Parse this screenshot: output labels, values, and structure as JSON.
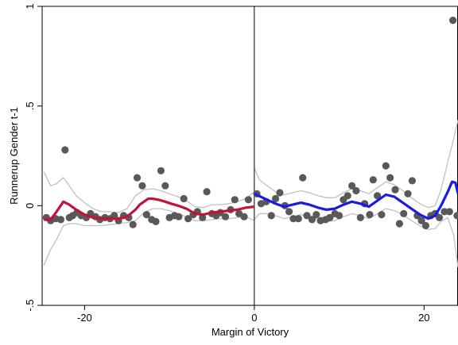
{
  "chart_data": {
    "type": "scatter",
    "xlabel": "Margin of Victory",
    "ylabel": "Runnerup Gender t-1",
    "xlim": [
      -25,
      24
    ],
    "ylim": [
      -0.5,
      1
    ],
    "xticks": [
      {
        "value": -20,
        "label": "-20"
      },
      {
        "value": 0,
        "label": "0"
      },
      {
        "value": 20,
        "label": "20"
      }
    ],
    "yticks": [
      {
        "value": -0.5,
        "label": "-.5"
      },
      {
        "value": 0,
        "label": "0"
      },
      {
        "value": 0.5,
        "label": ".5"
      },
      {
        "value": 1,
        "label": "1"
      }
    ],
    "cutoff": 0,
    "grid": false,
    "colors": {
      "points": "#595959",
      "left_fit": "#c0143c",
      "right_fit": "#1a1ae6",
      "ci": "#c0c0c0",
      "cutoff": "#000000"
    },
    "points": [
      [
        -24.5,
        -0.06
      ],
      [
        -24.0,
        -0.075
      ],
      [
        -23.4,
        -0.065
      ],
      [
        -22.8,
        -0.07
      ],
      [
        -22.3,
        0.28
      ],
      [
        -21.8,
        -0.06
      ],
      [
        -21.4,
        -0.05
      ],
      [
        -20.9,
        -0.035
      ],
      [
        -20.4,
        -0.05
      ],
      [
        -19.8,
        -0.06
      ],
      [
        -19.3,
        -0.04
      ],
      [
        -18.7,
        -0.055
      ],
      [
        -18.2,
        -0.07
      ],
      [
        -17.6,
        -0.06
      ],
      [
        -17.0,
        -0.065
      ],
      [
        -16.5,
        -0.05
      ],
      [
        -16.0,
        -0.075
      ],
      [
        -15.4,
        -0.05
      ],
      [
        -14.8,
        -0.06
      ],
      [
        -14.3,
        -0.095
      ],
      [
        -13.8,
        0.14
      ],
      [
        -13.2,
        0.1
      ],
      [
        -12.7,
        -0.045
      ],
      [
        -12.1,
        -0.07
      ],
      [
        -11.6,
        -0.08
      ],
      [
        -11.0,
        0.175
      ],
      [
        -10.5,
        0.1
      ],
      [
        -10.0,
        -0.06
      ],
      [
        -9.4,
        -0.05
      ],
      [
        -8.9,
        -0.055
      ],
      [
        -8.3,
        0.035
      ],
      [
        -7.8,
        -0.065
      ],
      [
        -7.2,
        -0.045
      ],
      [
        -6.7,
        -0.03
      ],
      [
        -6.1,
        -0.06
      ],
      [
        -5.6,
        0.07
      ],
      [
        -5.0,
        -0.04
      ],
      [
        -4.5,
        -0.05
      ],
      [
        -4.0,
        -0.035
      ],
      [
        -3.4,
        -0.055
      ],
      [
        -2.8,
        -0.02
      ],
      [
        -2.3,
        0.03
      ],
      [
        -1.8,
        -0.04
      ],
      [
        -1.2,
        -0.055
      ],
      [
        -0.7,
        0.03
      ],
      [
        0.3,
        0.06
      ],
      [
        0.8,
        0.01
      ],
      [
        1.4,
        0.02
      ],
      [
        2.0,
        -0.05
      ],
      [
        2.5,
        0.035
      ],
      [
        3.0,
        0.065
      ],
      [
        3.6,
        0.0
      ],
      [
        4.1,
        -0.03
      ],
      [
        4.6,
        -0.065
      ],
      [
        5.2,
        -0.065
      ],
      [
        5.7,
        0.14
      ],
      [
        6.2,
        -0.05
      ],
      [
        6.8,
        -0.07
      ],
      [
        7.3,
        -0.045
      ],
      [
        7.8,
        -0.075
      ],
      [
        8.4,
        -0.07
      ],
      [
        8.9,
        -0.06
      ],
      [
        9.5,
        -0.04
      ],
      [
        10.0,
        -0.05
      ],
      [
        10.5,
        0.03
      ],
      [
        11.0,
        0.05
      ],
      [
        11.5,
        0.1
      ],
      [
        12.0,
        0.075
      ],
      [
        12.5,
        -0.06
      ],
      [
        13.0,
        0.01
      ],
      [
        13.6,
        -0.045
      ],
      [
        14.0,
        0.13
      ],
      [
        14.5,
        0.05
      ],
      [
        15.0,
        -0.045
      ],
      [
        15.5,
        0.2
      ],
      [
        16.0,
        0.14
      ],
      [
        16.6,
        0.08
      ],
      [
        17.1,
        -0.09
      ],
      [
        17.6,
        -0.04
      ],
      [
        18.1,
        0.06
      ],
      [
        18.6,
        0.125
      ],
      [
        19.2,
        -0.05
      ],
      [
        19.7,
        -0.075
      ],
      [
        20.2,
        -0.1
      ],
      [
        20.8,
        -0.05
      ],
      [
        21.3,
        -0.04
      ],
      [
        21.8,
        -0.06
      ],
      [
        22.4,
        -0.03
      ],
      [
        23.0,
        -0.03
      ],
      [
        23.4,
        0.93
      ],
      [
        23.9,
        -0.05
      ]
    ],
    "left_fit": [
      [
        -24.8,
        -0.07
      ],
      [
        -24.0,
        -0.07
      ],
      [
        -23.3,
        -0.03
      ],
      [
        -22.5,
        0.02
      ],
      [
        -21.8,
        0.005
      ],
      [
        -21.0,
        -0.02
      ],
      [
        -20.0,
        -0.045
      ],
      [
        -19.0,
        -0.06
      ],
      [
        -18.0,
        -0.065
      ],
      [
        -17.0,
        -0.065
      ],
      [
        -16.0,
        -0.065
      ],
      [
        -15.0,
        -0.055
      ],
      [
        -14.0,
        -0.02
      ],
      [
        -13.5,
        0.005
      ],
      [
        -13.0,
        0.02
      ],
      [
        -12.5,
        0.035
      ],
      [
        -12.0,
        0.035
      ],
      [
        -11.3,
        0.03
      ],
      [
        -10.5,
        0.02
      ],
      [
        -9.8,
        0.01
      ],
      [
        -9.0,
        0.0
      ],
      [
        -8.0,
        -0.015
      ],
      [
        -7.0,
        -0.04
      ],
      [
        -6.0,
        -0.045
      ],
      [
        -5.0,
        -0.035
      ],
      [
        -4.0,
        -0.03
      ],
      [
        -3.0,
        -0.025
      ],
      [
        -2.0,
        -0.02
      ],
      [
        -1.0,
        -0.01
      ],
      [
        0.0,
        -0.005
      ]
    ],
    "left_ci_upper": [
      [
        -24.8,
        0.17
      ],
      [
        -24.0,
        0.1
      ],
      [
        -23.3,
        0.11
      ],
      [
        -22.5,
        0.14
      ],
      [
        -21.8,
        0.1
      ],
      [
        -21.0,
        0.05
      ],
      [
        -20.0,
        0.015
      ],
      [
        -19.0,
        -0.015
      ],
      [
        -18.0,
        -0.03
      ],
      [
        -17.0,
        -0.03
      ],
      [
        -16.0,
        -0.035
      ],
      [
        -15.0,
        -0.015
      ],
      [
        -14.0,
        0.05
      ],
      [
        -13.0,
        0.08
      ],
      [
        -12.0,
        0.085
      ],
      [
        -11.0,
        0.075
      ],
      [
        -10.0,
        0.06
      ],
      [
        -9.0,
        0.045
      ],
      [
        -8.0,
        0.025
      ],
      [
        -7.0,
        -0.005
      ],
      [
        -6.0,
        -0.01
      ],
      [
        -5.0,
        0.005
      ],
      [
        -4.0,
        0.005
      ],
      [
        -3.0,
        0.01
      ],
      [
        -2.0,
        0.02
      ],
      [
        -1.0,
        0.035
      ],
      [
        0.0,
        0.07
      ]
    ],
    "left_ci_lower": [
      [
        -24.8,
        -0.3
      ],
      [
        -24.0,
        -0.22
      ],
      [
        -23.3,
        -0.17
      ],
      [
        -22.5,
        -0.1
      ],
      [
        -21.8,
        -0.09
      ],
      [
        -21.0,
        -0.09
      ],
      [
        -20.0,
        -0.1
      ],
      [
        -19.0,
        -0.1
      ],
      [
        -18.0,
        -0.1
      ],
      [
        -17.0,
        -0.095
      ],
      [
        -16.0,
        -0.09
      ],
      [
        -15.0,
        -0.085
      ],
      [
        -14.0,
        -0.075
      ],
      [
        -13.0,
        -0.035
      ],
      [
        -12.0,
        -0.015
      ],
      [
        -11.0,
        -0.015
      ],
      [
        -10.0,
        -0.025
      ],
      [
        -9.0,
        -0.04
      ],
      [
        -8.0,
        -0.055
      ],
      [
        -7.0,
        -0.075
      ],
      [
        -6.0,
        -0.075
      ],
      [
        -5.0,
        -0.07
      ],
      [
        -4.0,
        -0.065
      ],
      [
        -3.0,
        -0.065
      ],
      [
        -2.0,
        -0.06
      ],
      [
        -1.0,
        -0.055
      ],
      [
        0.0,
        -0.075
      ]
    ],
    "right_fit": [
      [
        0.0,
        0.06
      ],
      [
        0.5,
        0.05
      ],
      [
        1.5,
        0.03
      ],
      [
        2.5,
        0.01
      ],
      [
        3.5,
        -0.005
      ],
      [
        4.5,
        0.005
      ],
      [
        5.5,
        0.015
      ],
      [
        6.5,
        0.005
      ],
      [
        7.5,
        -0.01
      ],
      [
        8.5,
        -0.02
      ],
      [
        9.5,
        -0.015
      ],
      [
        10.5,
        0.005
      ],
      [
        11.5,
        0.02
      ],
      [
        12.5,
        0.01
      ],
      [
        13.5,
        -0.005
      ],
      [
        14.5,
        0.025
      ],
      [
        15.5,
        0.055
      ],
      [
        16.5,
        0.045
      ],
      [
        17.5,
        0.015
      ],
      [
        18.5,
        -0.015
      ],
      [
        19.5,
        -0.045
      ],
      [
        20.5,
        -0.065
      ],
      [
        21.3,
        -0.05
      ],
      [
        22.0,
        0.0
      ],
      [
        22.8,
        0.07
      ],
      [
        23.3,
        0.12
      ],
      [
        23.7,
        0.115
      ],
      [
        24.0,
        0.06
      ]
    ],
    "right_ci_upper": [
      [
        0.0,
        0.19
      ],
      [
        0.6,
        0.13
      ],
      [
        1.5,
        0.1
      ],
      [
        2.5,
        0.07
      ],
      [
        3.5,
        0.055
      ],
      [
        4.5,
        0.065
      ],
      [
        5.5,
        0.075
      ],
      [
        6.5,
        0.065
      ],
      [
        7.5,
        0.05
      ],
      [
        8.5,
        0.04
      ],
      [
        9.5,
        0.04
      ],
      [
        10.5,
        0.065
      ],
      [
        11.5,
        0.085
      ],
      [
        12.5,
        0.075
      ],
      [
        13.5,
        0.06
      ],
      [
        14.5,
        0.09
      ],
      [
        15.5,
        0.12
      ],
      [
        16.5,
        0.105
      ],
      [
        17.5,
        0.075
      ],
      [
        18.5,
        0.04
      ],
      [
        19.5,
        0.01
      ],
      [
        20.5,
        -0.01
      ],
      [
        21.3,
        0.0
      ],
      [
        22.0,
        0.08
      ],
      [
        22.8,
        0.22
      ],
      [
        23.5,
        0.34
      ],
      [
        24.0,
        0.43
      ]
    ],
    "right_ci_lower": [
      [
        0.0,
        -0.07
      ],
      [
        0.6,
        -0.04
      ],
      [
        1.5,
        -0.04
      ],
      [
        2.5,
        -0.05
      ],
      [
        3.5,
        -0.065
      ],
      [
        4.5,
        -0.055
      ],
      [
        5.5,
        -0.045
      ],
      [
        6.5,
        -0.055
      ],
      [
        7.5,
        -0.07
      ],
      [
        8.5,
        -0.08
      ],
      [
        9.5,
        -0.075
      ],
      [
        10.5,
        -0.055
      ],
      [
        11.5,
        -0.04
      ],
      [
        12.5,
        -0.05
      ],
      [
        13.5,
        -0.065
      ],
      [
        14.5,
        -0.04
      ],
      [
        15.5,
        -0.015
      ],
      [
        16.5,
        -0.025
      ],
      [
        17.5,
        -0.045
      ],
      [
        18.5,
        -0.075
      ],
      [
        19.5,
        -0.1
      ],
      [
        20.5,
        -0.12
      ],
      [
        21.3,
        -0.115
      ],
      [
        22.0,
        -0.08
      ],
      [
        22.8,
        -0.06
      ],
      [
        23.5,
        -0.15
      ],
      [
        24.0,
        -0.31
      ]
    ]
  }
}
